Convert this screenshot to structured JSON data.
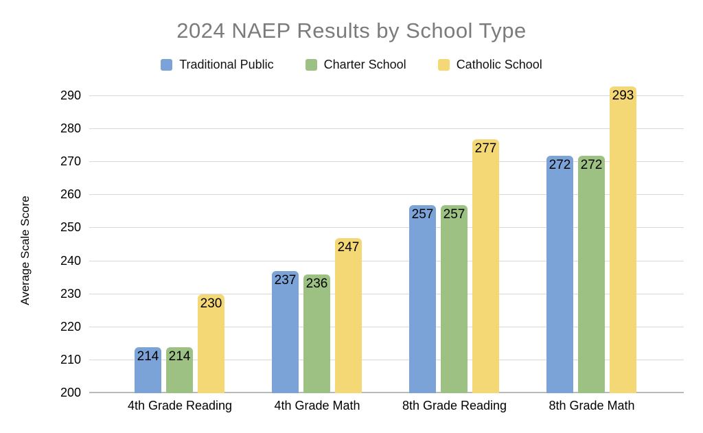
{
  "chart_data": {
    "type": "bar",
    "title": "2024 NAEP Results by School Type",
    "title_color": "#7b7b7b",
    "ylabel": "Average Scale Score",
    "xlabel": "",
    "categories": [
      "4th Grade Reading",
      "4th Grade Math",
      "8th Grade Reading",
      "8th Grade Math"
    ],
    "series": [
      {
        "name": "Traditional Public",
        "color": "#7BA3D8",
        "values": [
          214,
          237,
          257,
          272
        ]
      },
      {
        "name": "Charter School",
        "color": "#9CC183",
        "values": [
          214,
          236,
          257,
          272
        ]
      },
      {
        "name": "Catholic School",
        "color": "#F5D876",
        "values": [
          230,
          247,
          277,
          293
        ]
      }
    ],
    "ylim": [
      200,
      290
    ],
    "ytick_step": 10,
    "yticks": [
      200,
      210,
      220,
      230,
      240,
      250,
      260,
      270,
      280,
      290
    ],
    "grid": "horizontal",
    "gridline_color": "#d9d9d9",
    "axis_line_color": "#b9b9b9",
    "legend_position": "top",
    "value_labels": true,
    "value_label_color": "#000000",
    "background": "#ffffff"
  }
}
